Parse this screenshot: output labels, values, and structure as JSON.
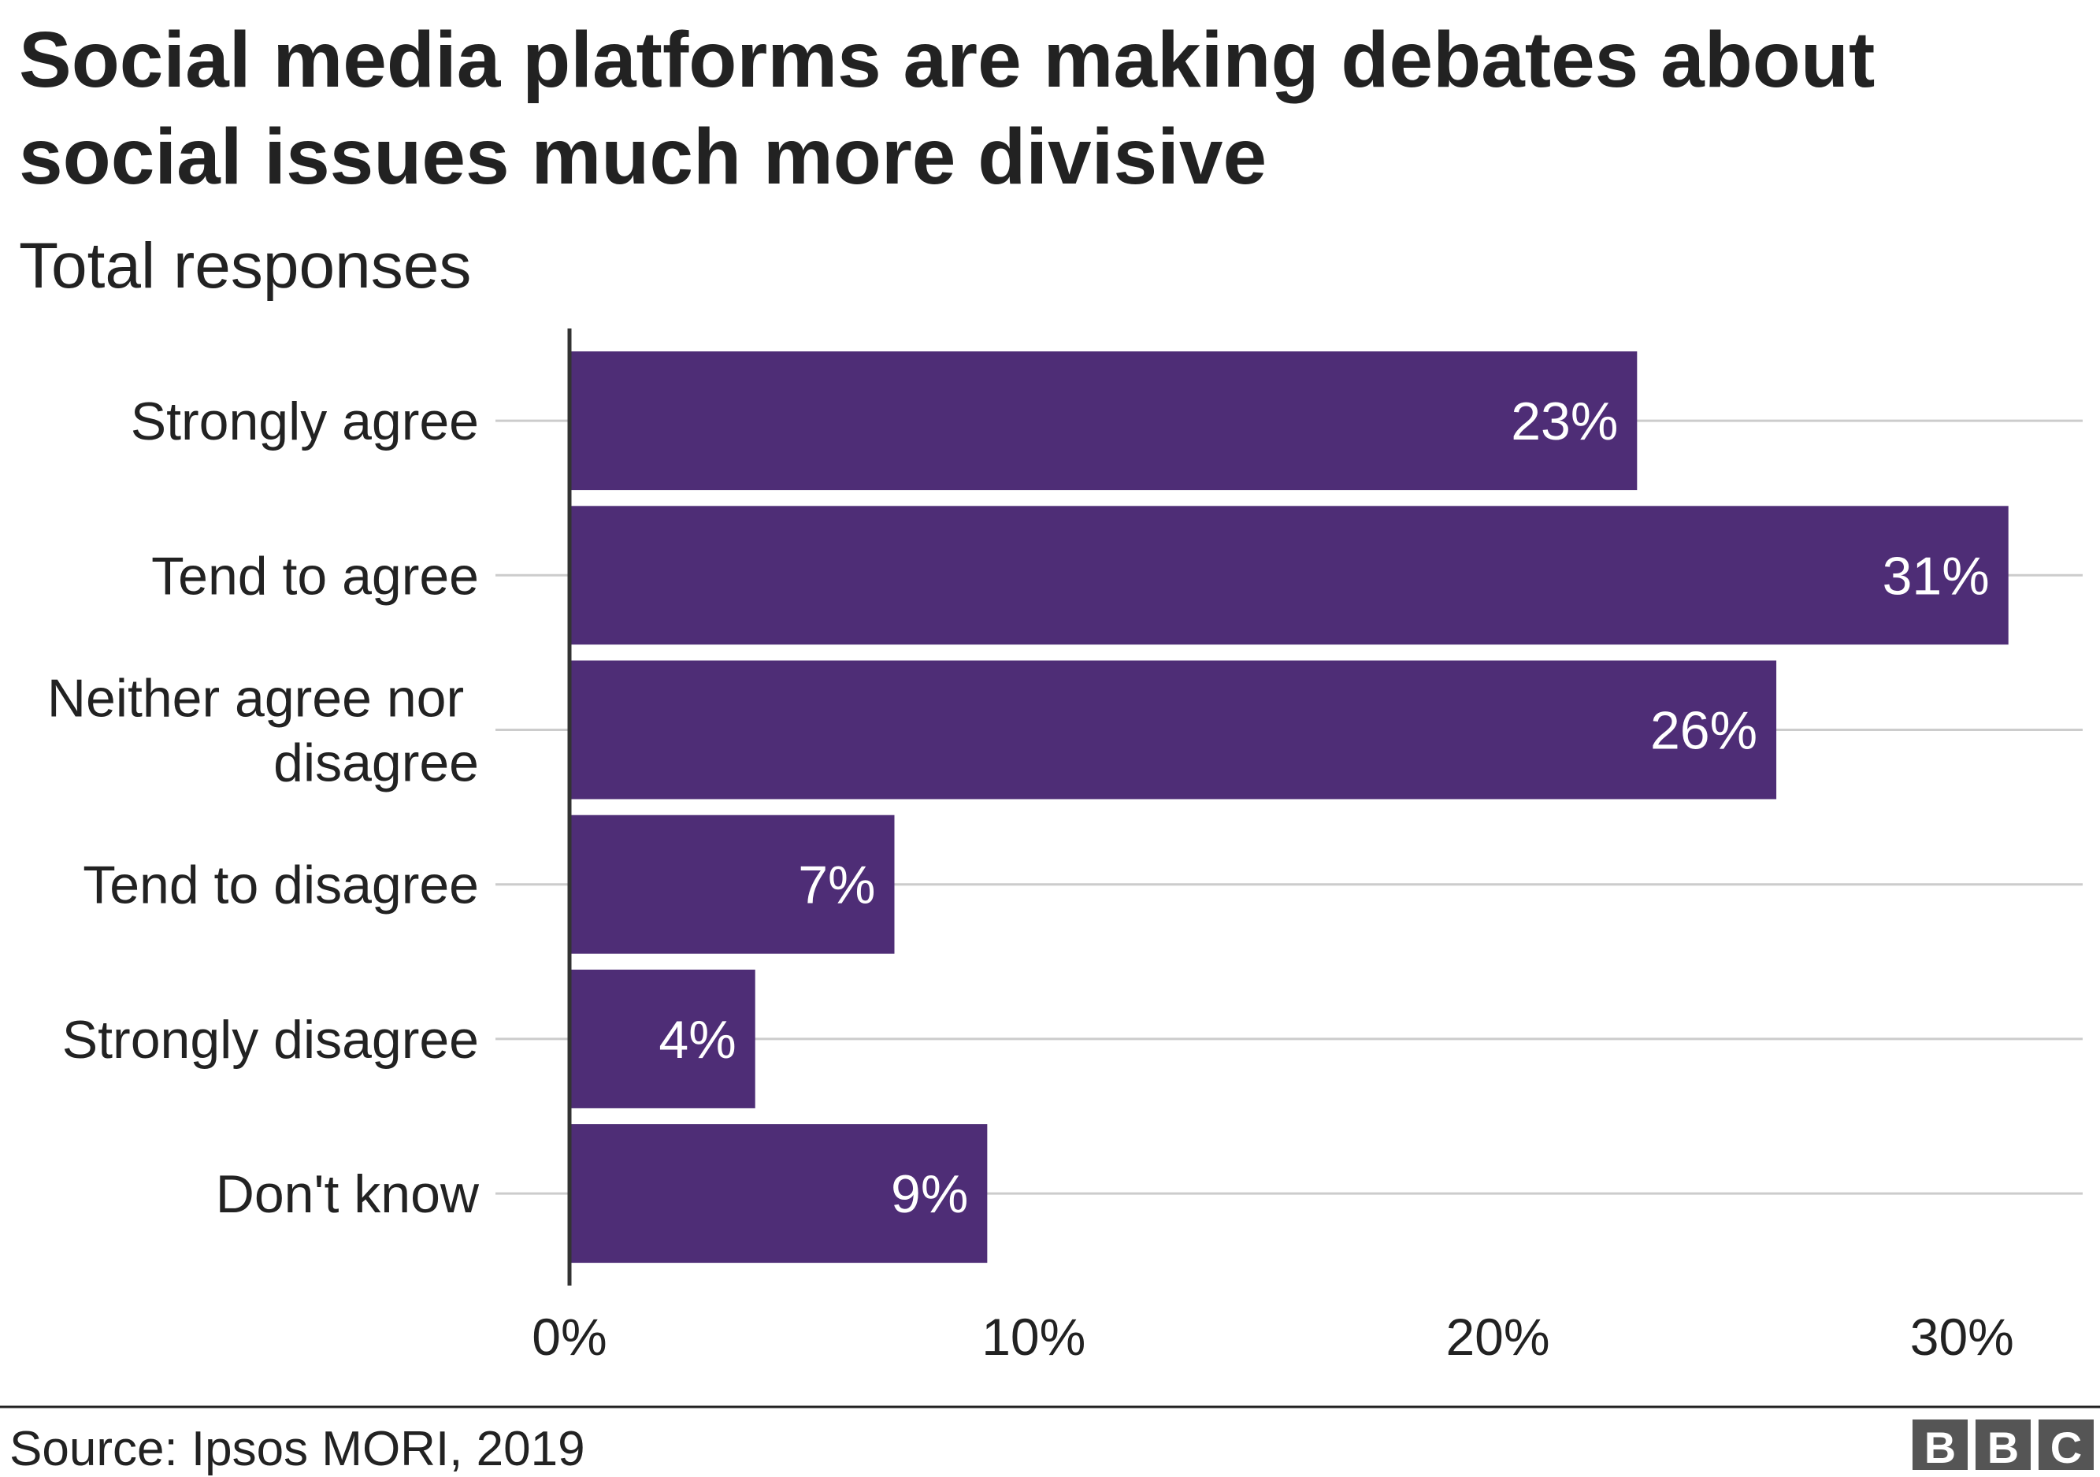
{
  "chart_data": {
    "type": "bar",
    "orientation": "horizontal",
    "title": "Social media platforms are making debates about social issues much more divisive",
    "subtitle": "Total responses",
    "categories": [
      "Strongly agree",
      "Tend to agree",
      "Neither agree nor disagree",
      "Tend to disagree",
      "Strongly disagree",
      "Don't know"
    ],
    "values": [
      23,
      31,
      26,
      7,
      4,
      9
    ],
    "value_labels": [
      "23%",
      "31%",
      "26%",
      "7%",
      "4%",
      "9%"
    ],
    "color": "#4e2d76",
    "xlim": [
      0,
      32.6
    ],
    "xticks": [
      {
        "value": 0,
        "label": "0%"
      },
      {
        "value": 10,
        "label": "10%"
      },
      {
        "value": 20,
        "label": "20%"
      },
      {
        "value": 30,
        "label": "30%"
      }
    ],
    "grid": true,
    "source": "Source: Ipsos MORI, 2019",
    "logo": [
      "B",
      "B",
      "C"
    ]
  }
}
